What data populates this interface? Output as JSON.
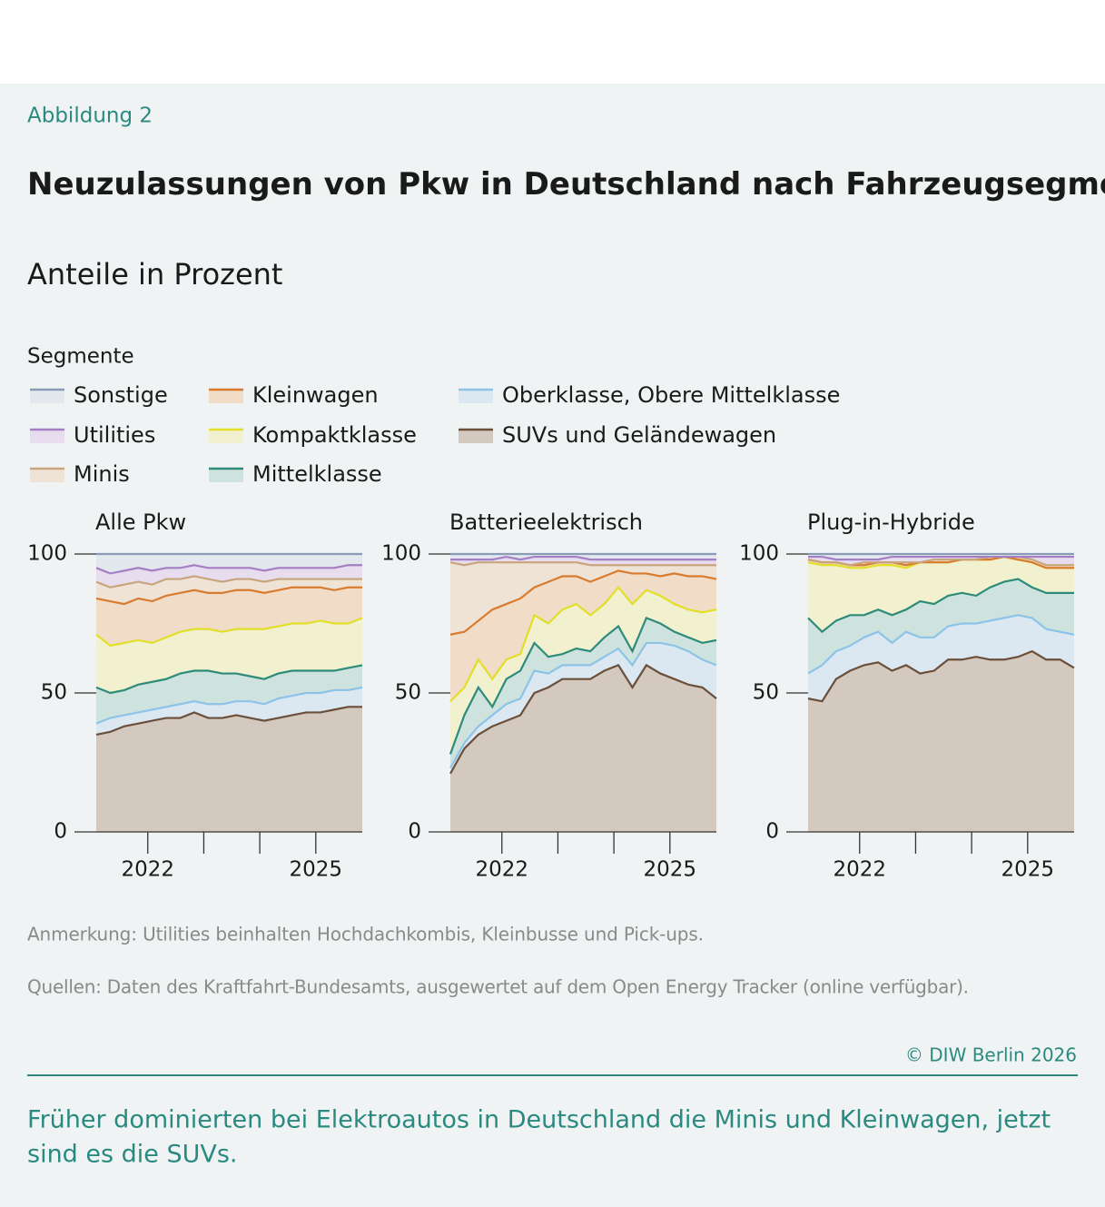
{
  "figure_label": "Abbildung 2",
  "title": "Neuzulassungen von Pkw in Deutschland nach Fahrzeugsegmenten",
  "subtitle": "Anteile in Prozent",
  "legend": {
    "title": "Segmente",
    "items": [
      {
        "name": "Sonstige",
        "color": "#8a9bb8",
        "fill": "#e3e7ee"
      },
      {
        "name": "Utilities",
        "color": "#a57fc4",
        "fill": "#e7ddef"
      },
      {
        "name": "Minis",
        "color": "#c8a57c",
        "fill": "#eee3d5"
      },
      {
        "name": "Kleinwagen",
        "color": "#d97b2f",
        "fill": "#f0dcc7"
      },
      {
        "name": "Kompaktklasse",
        "color": "#e2de2a",
        "fill": "#f1f1cf"
      },
      {
        "name": "Mittelklasse",
        "color": "#2e8b7a",
        "fill": "#cfe3de"
      },
      {
        "name": "Oberklasse, Obere Mittelklasse",
        "color": "#8ec3e8",
        "fill": "#dbe8f2"
      },
      {
        "name": "SUVs und Geländewagen",
        "color": "#6b4f3a",
        "fill": "#d3c9be"
      }
    ]
  },
  "chart_data": [
    {
      "type": "stacked-area",
      "title": "Alle Pkw",
      "x": [
        2021.08,
        2021.33,
        2021.58,
        2021.83,
        2022.08,
        2022.33,
        2022.58,
        2022.83,
        2023.08,
        2023.33,
        2023.58,
        2023.83,
        2024.08,
        2024.33,
        2024.58,
        2024.83,
        2025.08,
        2025.33,
        2025.58,
        2025.83
      ],
      "xlim": [
        2021.08,
        2025.83
      ],
      "xticks": [
        2022,
        {
          "value": 2023,
          "label": null
        },
        {
          "value": 2024,
          "label": null
        },
        2025
      ],
      "ylim": [
        0,
        100
      ],
      "yticks": [
        0,
        50,
        100
      ],
      "series": [
        {
          "values": [
            5,
            7,
            6,
            5,
            6,
            5,
            5,
            4,
            5,
            5,
            5,
            5,
            6,
            5,
            5,
            5,
            5,
            5,
            4,
            4
          ]
        },
        {
          "values": [
            5,
            5,
            5,
            5,
            5,
            4,
            4,
            4,
            4,
            5,
            4,
            4,
            4,
            4,
            4,
            4,
            4,
            4,
            5,
            5
          ]
        },
        {
          "values": [
            6,
            5,
            7,
            6,
            6,
            6,
            5,
            5,
            5,
            4,
            4,
            4,
            4,
            4,
            3,
            3,
            3,
            4,
            3,
            3
          ]
        },
        {
          "values": [
            13,
            16,
            14,
            15,
            15,
            15,
            14,
            14,
            13,
            14,
            14,
            14,
            13,
            13,
            13,
            13,
            12,
            12,
            13,
            11
          ]
        },
        {
          "values": [
            19,
            17,
            17,
            16,
            14,
            15,
            15,
            15,
            15,
            15,
            16,
            17,
            18,
            17,
            17,
            17,
            18,
            17,
            16,
            17
          ]
        },
        {
          "values": [
            13,
            9,
            9,
            10,
            10,
            10,
            11,
            11,
            12,
            11,
            10,
            9,
            9,
            9,
            9,
            8,
            8,
            7,
            8,
            8
          ]
        },
        {
          "values": [
            4,
            5,
            4,
            4,
            4,
            4,
            5,
            4,
            5,
            5,
            5,
            6,
            6,
            7,
            7,
            7,
            7,
            7,
            6,
            7
          ]
        },
        {
          "values": [
            35,
            36,
            38,
            39,
            40,
            41,
            41,
            43,
            41,
            41,
            42,
            41,
            40,
            41,
            42,
            43,
            43,
            44,
            45,
            45
          ]
        }
      ]
    },
    {
      "type": "stacked-area",
      "title": "Batterieelektrisch",
      "x": [
        2021.08,
        2021.33,
        2021.58,
        2021.83,
        2022.08,
        2022.33,
        2022.58,
        2022.83,
        2023.08,
        2023.33,
        2023.58,
        2023.83,
        2024.08,
        2024.33,
        2024.58,
        2024.83,
        2025.08,
        2025.33,
        2025.58,
        2025.83
      ],
      "xlim": [
        2021.08,
        2025.83
      ],
      "xticks": [
        2022,
        {
          "value": 2023,
          "label": null
        },
        {
          "value": 2024,
          "label": null
        },
        2025
      ],
      "ylim": [
        0,
        100
      ],
      "yticks": [
        0,
        50,
        100
      ],
      "series": [
        {
          "values": [
            2,
            2,
            2,
            2,
            1,
            2,
            1,
            1,
            1,
            1,
            2,
            2,
            2,
            2,
            2,
            2,
            2,
            2,
            2,
            2
          ]
        },
        {
          "values": [
            1,
            2,
            1,
            1,
            2,
            1,
            2,
            2,
            2,
            2,
            2,
            2,
            2,
            2,
            2,
            2,
            2,
            2,
            2,
            2
          ]
        },
        {
          "values": [
            26,
            24,
            21,
            17,
            15,
            13,
            9,
            7,
            5,
            5,
            6,
            4,
            2,
            3,
            3,
            4,
            3,
            4,
            4,
            5
          ]
        },
        {
          "values": [
            24,
            20,
            14,
            25,
            20,
            20,
            10,
            15,
            12,
            10,
            12,
            10,
            6,
            11,
            6,
            7,
            11,
            12,
            13,
            11
          ]
        },
        {
          "values": [
            19,
            10,
            10,
            10,
            7,
            6,
            10,
            12,
            16,
            16,
            13,
            12,
            14,
            17,
            10,
            10,
            10,
            10,
            11,
            11
          ]
        },
        {
          "values": [
            5,
            10,
            14,
            3,
            9,
            10,
            10,
            6,
            4,
            6,
            5,
            7,
            8,
            5,
            9,
            7,
            5,
            5,
            6,
            9
          ]
        },
        {
          "values": [
            2,
            2,
            3,
            4,
            6,
            6,
            8,
            5,
            5,
            5,
            5,
            5,
            6,
            8,
            8,
            11,
            12,
            12,
            10,
            12
          ]
        },
        {
          "values": [
            21,
            30,
            35,
            38,
            40,
            42,
            50,
            52,
            55,
            55,
            55,
            58,
            60,
            52,
            60,
            57,
            55,
            53,
            52,
            48
          ]
        }
      ]
    },
    {
      "type": "stacked-area",
      "title": "Plug-in-Hybride",
      "x": [
        2021.08,
        2021.33,
        2021.58,
        2021.83,
        2022.08,
        2022.33,
        2022.58,
        2022.83,
        2023.08,
        2023.33,
        2023.58,
        2023.83,
        2024.08,
        2024.33,
        2024.58,
        2024.83,
        2025.08,
        2025.33,
        2025.58,
        2025.83
      ],
      "xlim": [
        2021.08,
        2025.83
      ],
      "xticks": [
        2022,
        {
          "value": 2023,
          "label": null
        },
        {
          "value": 2024,
          "label": null
        },
        2025
      ],
      "ylim": [
        0,
        100
      ],
      "yticks": [
        0,
        50,
        100
      ],
      "series": [
        {
          "values": [
            1,
            1,
            2,
            2,
            2,
            2,
            1,
            1,
            1,
            1,
            1,
            1,
            1,
            1,
            1,
            1,
            1,
            1,
            1,
            1
          ]
        },
        {
          "values": [
            1,
            2,
            1,
            2,
            1,
            1,
            2,
            2,
            2,
            1,
            1,
            1,
            1,
            0,
            0,
            0,
            1,
            3,
            3,
            3
          ]
        },
        {
          "values": [
            0,
            0,
            0,
            0,
            1,
            0,
            0,
            1,
            0,
            1,
            1,
            0,
            0,
            1,
            0,
            1,
            1,
            1,
            1,
            1
          ]
        },
        {
          "values": [
            1,
            1,
            1,
            1,
            1,
            1,
            1,
            1,
            0,
            0,
            0,
            0,
            0,
            0,
            0,
            0,
            0,
            0,
            0,
            0
          ]
        },
        {
          "values": [
            20,
            24,
            20,
            17,
            17,
            16,
            18,
            15,
            14,
            15,
            12,
            12,
            13,
            10,
            9,
            7,
            9,
            9,
            9,
            9
          ]
        },
        {
          "values": [
            20,
            12,
            11,
            11,
            8,
            8,
            10,
            8,
            13,
            12,
            11,
            11,
            10,
            12,
            13,
            13,
            11,
            13,
            14,
            15
          ]
        },
        {
          "values": [
            9,
            13,
            10,
            9,
            10,
            11,
            10,
            12,
            13,
            12,
            12,
            13,
            12,
            14,
            15,
            15,
            12,
            11,
            10,
            12
          ]
        },
        {
          "values": [
            48,
            47,
            55,
            58,
            60,
            61,
            58,
            60,
            57,
            58,
            62,
            62,
            63,
            62,
            62,
            63,
            65,
            62,
            62,
            59
          ]
        }
      ]
    }
  ],
  "note": "Anmerkung: Utilities beinhalten Hochdachkombis, Kleinbusse und Pick-ups.",
  "source": "Quellen: Daten des Kraftfahrt-Bundesamts, ausgewertet auf dem Open Energy Tracker (online verfügbar).",
  "copyright": "© DIW Berlin 2026",
  "caption": [
    "Früher dominierten bei Elektroautos in Deutschland die Minis und Kleinwagen, jetzt",
    "sind es die SUVs."
  ]
}
